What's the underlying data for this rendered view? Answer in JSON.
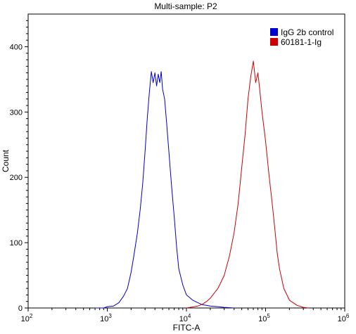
{
  "chart_data": {
    "type": "line",
    "title": "Multi-sample: P2",
    "xlabel": "FITC-A",
    "ylabel": "Count",
    "x_scale": "log",
    "xlim": [
      100,
      1000000
    ],
    "ylim": [
      0,
      450
    ],
    "x_ticks": [
      {
        "value": 100,
        "base": "10",
        "exp": "2"
      },
      {
        "value": 1000,
        "base": "10",
        "exp": "3"
      },
      {
        "value": 10000,
        "base": "10",
        "exp": "4"
      },
      {
        "value": 100000,
        "base": "10",
        "exp": "5"
      },
      {
        "value": 1000000,
        "base": "10",
        "exp": "6"
      }
    ],
    "y_ticks": [
      0,
      100,
      200,
      300,
      400
    ],
    "legend_position": "top-right",
    "series": [
      {
        "name": "IgG 2b control",
        "color": "#0000cc",
        "points": [
          [
            700,
            0
          ],
          [
            900,
            0
          ],
          [
            1000,
            2
          ],
          [
            1200,
            3
          ],
          [
            1400,
            8
          ],
          [
            1600,
            18
          ],
          [
            1800,
            30
          ],
          [
            2000,
            55
          ],
          [
            2200,
            85
          ],
          [
            2400,
            115
          ],
          [
            2600,
            150
          ],
          [
            2800,
            190
          ],
          [
            3000,
            240
          ],
          [
            3200,
            290
          ],
          [
            3400,
            330
          ],
          [
            3600,
            362
          ],
          [
            3800,
            345
          ],
          [
            4000,
            360
          ],
          [
            4200,
            340
          ],
          [
            4400,
            358
          ],
          [
            4600,
            345
          ],
          [
            4800,
            362
          ],
          [
            5000,
            335
          ],
          [
            5300,
            320
          ],
          [
            5600,
            285
          ],
          [
            6000,
            240
          ],
          [
            6500,
            185
          ],
          [
            7000,
            140
          ],
          [
            7500,
            95
          ],
          [
            8000,
            60
          ],
          [
            9000,
            35
          ],
          [
            10000,
            20
          ],
          [
            12000,
            12
          ],
          [
            14000,
            8
          ],
          [
            16000,
            5
          ],
          [
            20000,
            3
          ],
          [
            25000,
            2
          ],
          [
            30000,
            1
          ],
          [
            40000,
            0
          ]
        ]
      },
      {
        "name": "60181-1-Ig",
        "color": "#cc0000",
        "points": [
          [
            10000,
            0
          ],
          [
            14000,
            3
          ],
          [
            16000,
            6
          ],
          [
            18000,
            10
          ],
          [
            20000,
            15
          ],
          [
            25000,
            30
          ],
          [
            30000,
            50
          ],
          [
            35000,
            80
          ],
          [
            40000,
            115
          ],
          [
            45000,
            160
          ],
          [
            50000,
            215
          ],
          [
            55000,
            265
          ],
          [
            60000,
            320
          ],
          [
            65000,
            355
          ],
          [
            70000,
            378
          ],
          [
            75000,
            345
          ],
          [
            80000,
            360
          ],
          [
            85000,
            330
          ],
          [
            90000,
            300
          ],
          [
            100000,
            255
          ],
          [
            110000,
            205
          ],
          [
            120000,
            165
          ],
          [
            130000,
            125
          ],
          [
            140000,
            85
          ],
          [
            150000,
            60
          ],
          [
            170000,
            30
          ],
          [
            200000,
            12
          ],
          [
            250000,
            4
          ],
          [
            300000,
            1
          ],
          [
            350000,
            0
          ]
        ]
      }
    ]
  }
}
